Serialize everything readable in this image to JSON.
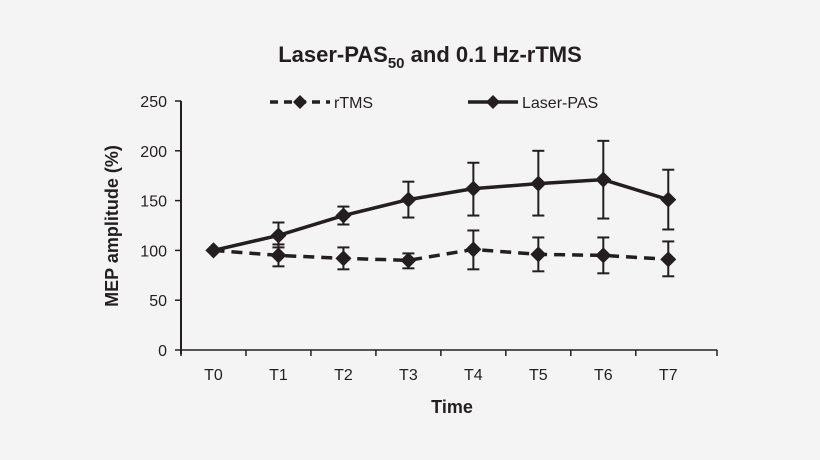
{
  "chart_data": {
    "type": "line",
    "title": "Laser-PAS50 and 0.1 Hz-rTMS",
    "title_parts": {
      "main": "Laser-PAS",
      "subscript": "50",
      "rest": " and 0.1 Hz-rTMS"
    },
    "xlabel": "Time",
    "ylabel": "MEP amplitude (%)",
    "categories": [
      "T0",
      "T1",
      "T2",
      "T3",
      "T4",
      "T5",
      "T6",
      "T7"
    ],
    "ylim": [
      0,
      250
    ],
    "yticks": [
      0,
      50,
      100,
      150,
      200,
      250
    ],
    "grid": false,
    "legend_position": "top",
    "series": [
      {
        "name": "rTMS",
        "line_style": "dashed",
        "marker": "diamond",
        "color": "#231f20",
        "values": [
          100,
          95,
          92,
          90,
          101,
          96,
          95,
          91
        ],
        "error_low": [
          100,
          84,
          81,
          82,
          81,
          79,
          77,
          74
        ],
        "error_high": [
          100,
          106,
          103,
          97,
          120,
          113,
          113,
          109
        ]
      },
      {
        "name": "Laser-PAS",
        "line_style": "solid",
        "marker": "diamond",
        "color": "#231f20",
        "values": [
          100,
          115,
          135,
          151,
          162,
          167,
          171,
          151
        ],
        "error_low": [
          100,
          103,
          126,
          133,
          135,
          135,
          132,
          121
        ],
        "error_high": [
          100,
          128,
          144,
          169,
          188,
          200,
          210,
          181
        ]
      }
    ]
  },
  "colors": {
    "background": "#f4f4f4",
    "ink": "#231f20"
  }
}
